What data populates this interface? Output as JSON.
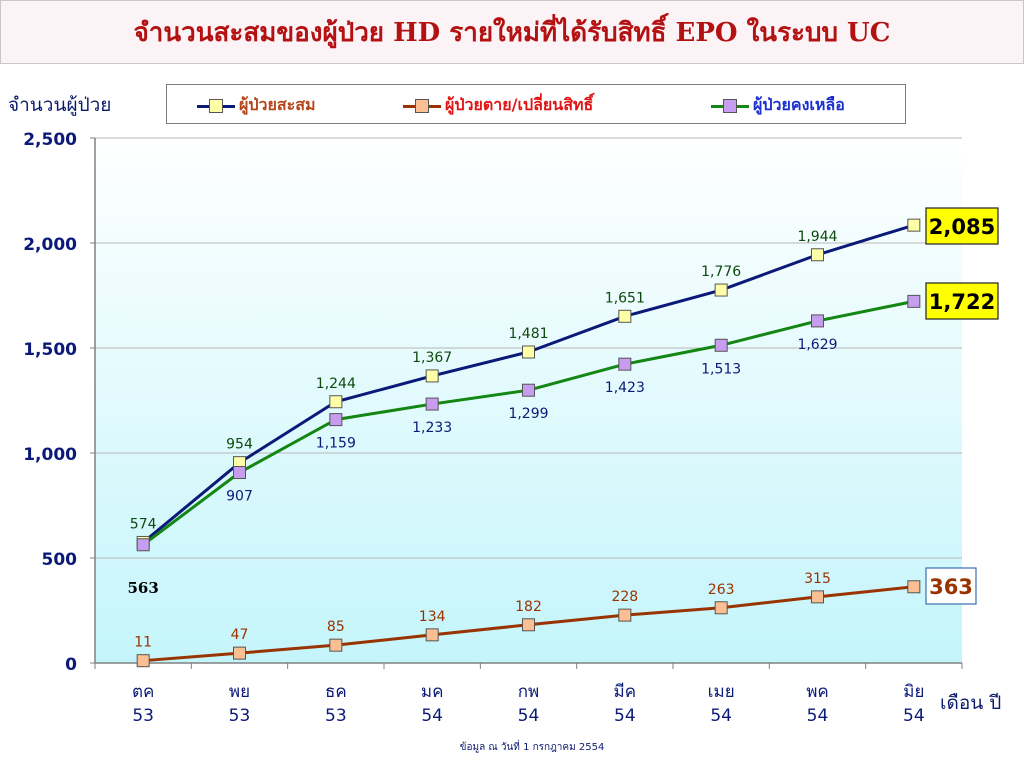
{
  "title": "จำนวนสะสมของผู้ป่วย HD รายใหม่ที่ได้รับสิทธิ์ EPO ในระบบ UC",
  "footnote": "ข้อมูล ณ วันที่ 1 กรกฎาคม  2554",
  "chart_data": {
    "type": "line",
    "title": "จำนวนสะสมของผู้ป่วย HD รายใหม่ที่ได้รับสิทธิ์ EPO ในระบบ UC",
    "ylabel": "จำนวนผู้ป่วย",
    "xlabel": "เดือน  ปี",
    "categories": [
      {
        "month": "ตค",
        "year": "53"
      },
      {
        "month": "พย",
        "year": "53"
      },
      {
        "month": "ธค",
        "year": "53"
      },
      {
        "month": "มค",
        "year": "54"
      },
      {
        "month": "กพ",
        "year": "54"
      },
      {
        "month": "มีค",
        "year": "54"
      },
      {
        "month": "เมย",
        "year": "54"
      },
      {
        "month": "พค",
        "year": "54"
      },
      {
        "month": "มิย",
        "year": "54"
      }
    ],
    "ylim": [
      0,
      2500
    ],
    "yticks": [
      {
        "value": 0,
        "label": "0"
      },
      {
        "value": 500,
        "label": "500"
      },
      {
        "value": 1000,
        "label": "1,000"
      },
      {
        "value": 1500,
        "label": "1,500"
      },
      {
        "value": 2000,
        "label": "2,000"
      },
      {
        "value": 2500,
        "label": "2,500"
      }
    ],
    "grid": true,
    "legend": "top",
    "series": [
      {
        "name": "ผู้ป่วยสะสม",
        "line_color": "#0b1a78",
        "marker_color": "#ffffa8",
        "label_color": "#0d4a0d",
        "legend_text_color": "#b4441a",
        "label_position": "above",
        "values": [
          574,
          954,
          1244,
          1367,
          1481,
          1651,
          1776,
          1944,
          2085
        ],
        "labels": [
          "574",
          "954",
          "1,244",
          "1,367",
          "1,481",
          "1,651",
          "1,776",
          "1,944",
          "2,085"
        ],
        "end_box_bg": "#ffff00"
      },
      {
        "name": "ผู้ป่วยตาย/เปลี่ยนสิทธิ์",
        "line_color": "#993300",
        "marker_color": "#fbbf93",
        "label_color": "#993300",
        "legend_text_color": "#e01414",
        "label_position": "above",
        "values": [
          11,
          47,
          85,
          134,
          182,
          228,
          263,
          315,
          363
        ],
        "labels": [
          "11",
          "47",
          "85",
          "134",
          "182",
          "228",
          "263",
          "315",
          "363"
        ],
        "end_box_bg": "#ffffff"
      },
      {
        "name": "ผู้ป่วยคงเหลือ",
        "line_color": "#138613",
        "marker_color": "#c79df0",
        "label_color": "#0b1a78",
        "legend_text_color": "#1a2fd0",
        "label_position": "below",
        "values": [
          563,
          907,
          1159,
          1233,
          1299,
          1423,
          1513,
          1629,
          1722
        ],
        "labels": [
          "563",
          "907",
          "1,159",
          "1,233",
          "1,299",
          "1,423",
          "1,513",
          "1,629",
          "1,722"
        ],
        "end_box_bg": "#ffff00"
      }
    ]
  }
}
